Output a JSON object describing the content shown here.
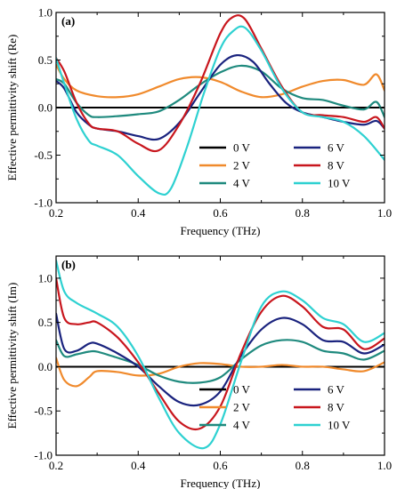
{
  "colors": {
    "0 V": "#000000",
    "2 V": "#f08a2c",
    "4 V": "#1f8a7e",
    "6 V": "#1a237e",
    "8 V": "#c8161d",
    "10 V": "#2ed1d1"
  },
  "chart_data": [
    {
      "type": "line",
      "panel_label": "(a)",
      "xlabel": "Frequency (THz)",
      "ylabel": "Effective permittivity shift (Re)",
      "xlim": [
        0.2,
        1.0
      ],
      "ylim": [
        -1.0,
        1.0
      ],
      "xticks": [
        0.2,
        0.4,
        0.6,
        0.8,
        1.0
      ],
      "xtick_labels": [
        "0.2",
        "0.4",
        "0.6",
        "0.8",
        "1.0"
      ],
      "yticks": [
        -1.0,
        -0.5,
        0.0,
        0.5,
        1.0
      ],
      "ytick_labels": [
        "-1.0",
        "-0.5",
        "0.0",
        "0.5",
        "1.0"
      ],
      "grid": false,
      "legend_position": "lower-right",
      "legend_columns": 2,
      "legend_order": [
        "0 V",
        "6 V",
        "2 V",
        "8 V",
        "4 V",
        "10 V"
      ],
      "series": [
        {
          "name": "0 V",
          "x": [
            0.2,
            1.0
          ],
          "y": [
            0.0,
            0.0
          ]
        },
        {
          "name": "2 V",
          "x": [
            0.2,
            0.22,
            0.25,
            0.3,
            0.35,
            0.4,
            0.45,
            0.5,
            0.55,
            0.6,
            0.65,
            0.7,
            0.75,
            0.8,
            0.85,
            0.9,
            0.95,
            0.98,
            1.0
          ],
          "y": [
            0.45,
            0.3,
            0.18,
            0.12,
            0.11,
            0.14,
            0.22,
            0.3,
            0.32,
            0.27,
            0.17,
            0.11,
            0.14,
            0.22,
            0.28,
            0.29,
            0.24,
            0.35,
            0.18
          ]
        },
        {
          "name": "4 V",
          "x": [
            0.2,
            0.22,
            0.25,
            0.28,
            0.3,
            0.35,
            0.4,
            0.45,
            0.5,
            0.55,
            0.6,
            0.65,
            0.7,
            0.75,
            0.8,
            0.85,
            0.9,
            0.95,
            0.98,
            1.0
          ],
          "y": [
            0.3,
            0.25,
            0.05,
            -0.08,
            -0.1,
            -0.09,
            -0.07,
            -0.04,
            0.08,
            0.24,
            0.37,
            0.44,
            0.38,
            0.2,
            0.1,
            0.08,
            0.02,
            -0.02,
            0.06,
            -0.1
          ]
        },
        {
          "name": "6 V",
          "x": [
            0.2,
            0.22,
            0.25,
            0.28,
            0.3,
            0.35,
            0.4,
            0.45,
            0.5,
            0.55,
            0.6,
            0.64,
            0.68,
            0.72,
            0.76,
            0.8,
            0.85,
            0.9,
            0.95,
            0.98,
            1.0
          ],
          "y": [
            0.28,
            0.2,
            -0.05,
            -0.18,
            -0.22,
            -0.25,
            -0.3,
            -0.33,
            -0.16,
            0.15,
            0.45,
            0.55,
            0.48,
            0.25,
            0.05,
            -0.05,
            -0.1,
            -0.15,
            -0.18,
            -0.14,
            -0.22
          ]
        },
        {
          "name": "8 V",
          "x": [
            0.2,
            0.22,
            0.25,
            0.28,
            0.3,
            0.35,
            0.4,
            0.45,
            0.5,
            0.55,
            0.6,
            0.63,
            0.66,
            0.7,
            0.75,
            0.8,
            0.85,
            0.9,
            0.95,
            0.98,
            1.0
          ],
          "y": [
            0.52,
            0.38,
            0.05,
            -0.17,
            -0.22,
            -0.25,
            -0.38,
            -0.45,
            -0.18,
            0.25,
            0.78,
            0.95,
            0.93,
            0.62,
            0.22,
            -0.05,
            -0.08,
            -0.1,
            -0.15,
            -0.1,
            -0.22
          ]
        },
        {
          "name": "10 V",
          "x": [
            0.2,
            0.22,
            0.25,
            0.28,
            0.3,
            0.35,
            0.4,
            0.45,
            0.48,
            0.52,
            0.56,
            0.6,
            0.63,
            0.66,
            0.7,
            0.75,
            0.8,
            0.85,
            0.9,
            0.95,
            1.0
          ],
          "y": [
            0.52,
            0.25,
            -0.12,
            -0.35,
            -0.4,
            -0.5,
            -0.72,
            -0.9,
            -0.85,
            -0.4,
            0.15,
            0.62,
            0.8,
            0.84,
            0.6,
            0.2,
            -0.05,
            -0.1,
            -0.15,
            -0.3,
            -0.55
          ]
        }
      ]
    },
    {
      "type": "line",
      "panel_label": "(b)",
      "xlabel": "Frequency (THz)",
      "ylabel": "Effective permittivity shift (Im)",
      "xlim": [
        0.2,
        1.0
      ],
      "ylim": [
        -1.0,
        1.25
      ],
      "xticks": [
        0.2,
        0.4,
        0.6,
        0.8,
        1.0
      ],
      "xtick_labels": [
        "0.2",
        "0.4",
        "0.6",
        "0.8",
        "1.0"
      ],
      "yticks": [
        -1.0,
        -0.5,
        0.0,
        0.5,
        1.0
      ],
      "ytick_labels": [
        "-1.0",
        "-0.5",
        "0.0",
        "0.5",
        "1.0"
      ],
      "grid": false,
      "legend_position": "lower-right",
      "legend_columns": 2,
      "legend_order": [
        "0 V",
        "6 V",
        "2 V",
        "8 V",
        "4 V",
        "10 V"
      ],
      "series": [
        {
          "name": "0 V",
          "x": [
            0.2,
            1.0
          ],
          "y": [
            0.0,
            0.0
          ]
        },
        {
          "name": "2 V",
          "x": [
            0.2,
            0.22,
            0.25,
            0.28,
            0.3,
            0.35,
            0.4,
            0.45,
            0.5,
            0.55,
            0.6,
            0.65,
            0.7,
            0.75,
            0.8,
            0.85,
            0.9,
            0.95,
            1.0
          ],
          "y": [
            0.1,
            -0.15,
            -0.22,
            -0.12,
            -0.05,
            -0.06,
            -0.1,
            -0.08,
            0.0,
            0.04,
            0.03,
            0.0,
            0.0,
            0.02,
            0.0,
            0.0,
            -0.03,
            -0.05,
            0.05
          ]
        },
        {
          "name": "4 V",
          "x": [
            0.2,
            0.22,
            0.25,
            0.28,
            0.3,
            0.35,
            0.4,
            0.45,
            0.5,
            0.55,
            0.6,
            0.65,
            0.7,
            0.75,
            0.8,
            0.85,
            0.9,
            0.95,
            1.0
          ],
          "y": [
            0.3,
            0.12,
            0.14,
            0.17,
            0.17,
            0.1,
            0.02,
            -0.1,
            -0.17,
            -0.18,
            -0.12,
            0.08,
            0.24,
            0.3,
            0.28,
            0.18,
            0.15,
            0.08,
            0.18
          ]
        },
        {
          "name": "6 V",
          "x": [
            0.2,
            0.22,
            0.25,
            0.28,
            0.3,
            0.35,
            0.4,
            0.45,
            0.5,
            0.55,
            0.6,
            0.65,
            0.7,
            0.75,
            0.8,
            0.85,
            0.9,
            0.95,
            1.0
          ],
          "y": [
            0.6,
            0.2,
            0.18,
            0.26,
            0.26,
            0.15,
            0.0,
            -0.22,
            -0.4,
            -0.43,
            -0.28,
            0.12,
            0.42,
            0.55,
            0.48,
            0.3,
            0.28,
            0.15,
            0.25
          ]
        },
        {
          "name": "8 V",
          "x": [
            0.2,
            0.22,
            0.25,
            0.28,
            0.3,
            0.35,
            0.4,
            0.45,
            0.5,
            0.55,
            0.6,
            0.65,
            0.7,
            0.75,
            0.8,
            0.85,
            0.9,
            0.95,
            1.0
          ],
          "y": [
            1.0,
            0.55,
            0.48,
            0.5,
            0.5,
            0.33,
            0.05,
            -0.3,
            -0.62,
            -0.7,
            -0.45,
            0.15,
            0.62,
            0.8,
            0.68,
            0.45,
            0.42,
            0.2,
            0.32
          ]
        },
        {
          "name": "10 V",
          "x": [
            0.2,
            0.22,
            0.25,
            0.3,
            0.35,
            0.4,
            0.45,
            0.5,
            0.56,
            0.6,
            0.65,
            0.7,
            0.75,
            0.8,
            0.85,
            0.9,
            0.95,
            1.0
          ],
          "y": [
            1.2,
            0.85,
            0.72,
            0.6,
            0.45,
            0.12,
            -0.35,
            -0.75,
            -0.92,
            -0.65,
            0.05,
            0.68,
            0.85,
            0.75,
            0.55,
            0.48,
            0.28,
            0.38
          ]
        }
      ]
    }
  ]
}
